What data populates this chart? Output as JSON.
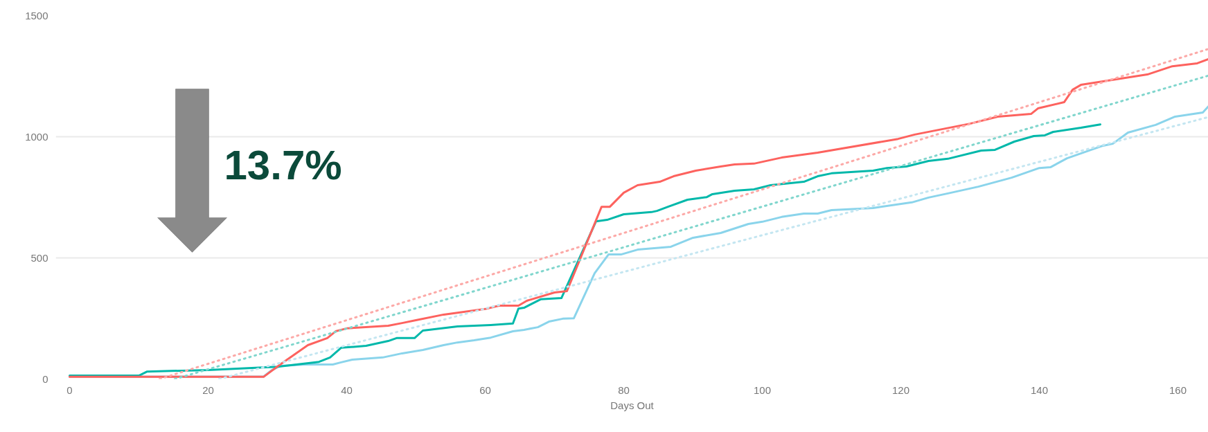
{
  "chart_data": {
    "type": "line",
    "xlabel": "Days Out",
    "annotations": [
      "13.7%"
    ],
    "xlim": [
      -2,
      164.4
    ],
    "ylim": [
      0,
      1500
    ],
    "xticks": [
      0,
      20,
      40,
      60,
      80,
      100,
      120,
      140,
      160
    ],
    "yticks": [
      0,
      500,
      1000,
      1500
    ],
    "grid": "y",
    "marker": "none",
    "line_style": "solid",
    "series": [
      {
        "color": "#8ad4eb",
        "x": [
          0,
          28,
          29.2,
          30.4,
          34,
          38,
          39.2,
          40.8,
          45.2,
          48,
          51,
          54,
          56,
          58.4,
          60.8,
          64,
          65.6,
          67.6,
          69.2,
          71.2,
          72.8,
          75.8,
          77.8,
          79.6,
          82,
          86.8,
          90,
          94,
          98,
          100,
          102.8,
          106,
          108,
          110,
          116,
          121.6,
          124,
          126.8,
          131.2,
          136,
          140,
          141.6,
          144,
          149.2,
          150.6,
          152.8,
          156.8,
          159.6,
          163.6,
          164.4
        ],
        "values": [
          10,
          10,
          37,
          54,
          60,
          60,
          69,
          80,
          89,
          106,
          120,
          140,
          151,
          160,
          171,
          197,
          203,
          214,
          237,
          249,
          251,
          437,
          514,
          514,
          534,
          546,
          583,
          603,
          640,
          649,
          669,
          683,
          683,
          697,
          706,
          729,
          749,
          766,
          794,
          831,
          871,
          874,
          911,
          963,
          971,
          1017,
          1049,
          1083,
          1100,
          1125
        ]
      },
      {
        "color": "#01b8aa",
        "x": [
          0,
          10,
          11.2,
          20,
          30,
          36,
          37.6,
          39.2,
          42.8,
          46,
          47.2,
          49.8,
          51,
          56,
          60.8,
          64,
          64.8,
          65.6,
          68,
          71,
          76,
          77.6,
          80,
          84,
          84.8,
          86.4,
          89.2,
          92,
          92.8,
          96,
          98.8,
          101.2,
          106,
          108,
          110,
          116,
          118,
          120.8,
          124,
          126.8,
          131.6,
          133.6,
          136.4,
          139.2,
          140.8,
          142,
          146,
          148.8
        ],
        "values": [
          14,
          14,
          31,
          37,
          51,
          71,
          89,
          129,
          137,
          157,
          169,
          169,
          200,
          217,
          223,
          229,
          291,
          294,
          329,
          334,
          651,
          657,
          680,
          689,
          694,
          711,
          740,
          751,
          763,
          777,
          783,
          800,
          814,
          837,
          849,
          860,
          871,
          877,
          900,
          909,
          943,
          946,
          980,
          1003,
          1006,
          1020,
          1037,
          1051
        ]
      },
      {
        "color": "#fd625e",
        "x": [
          0,
          28,
          30.4,
          32.4,
          34.4,
          37.2,
          38.4,
          40,
          46,
          48,
          50,
          54,
          60,
          62,
          64.8,
          66,
          70,
          71.8,
          76.8,
          78,
          80,
          82,
          85.2,
          87.2,
          90.4,
          94,
          96,
          98.8,
          102.8,
          108,
          119.6,
          122,
          130,
          134,
          138.8,
          139.8,
          143.6,
          144.8,
          146,
          155.6,
          159.2,
          162.8,
          164.4
        ],
        "values": [
          9,
          9,
          60,
          100,
          140,
          169,
          197,
          209,
          220,
          231,
          243,
          266,
          289,
          303,
          303,
          323,
          357,
          363,
          711,
          711,
          769,
          800,
          814,
          837,
          860,
          877,
          886,
          889,
          914,
          934,
          991,
          1009,
          1054,
          1083,
          1094,
          1117,
          1143,
          1194,
          1214,
          1257,
          1291,
          1303,
          1320
        ]
      },
      {
        "color": "#c4e6f1",
        "line_style": "dotted",
        "x": [
          21.6,
          164.4
        ],
        "values": [
          0,
          1081
        ]
      },
      {
        "color": "#80d6cd",
        "line_style": "dotted",
        "x": [
          15.2,
          164.4
        ],
        "values": [
          0,
          1252
        ]
      },
      {
        "color": "#fca9a7",
        "line_style": "dotted",
        "x": [
          13,
          164.4
        ],
        "values": [
          0,
          1362
        ]
      }
    ]
  }
}
